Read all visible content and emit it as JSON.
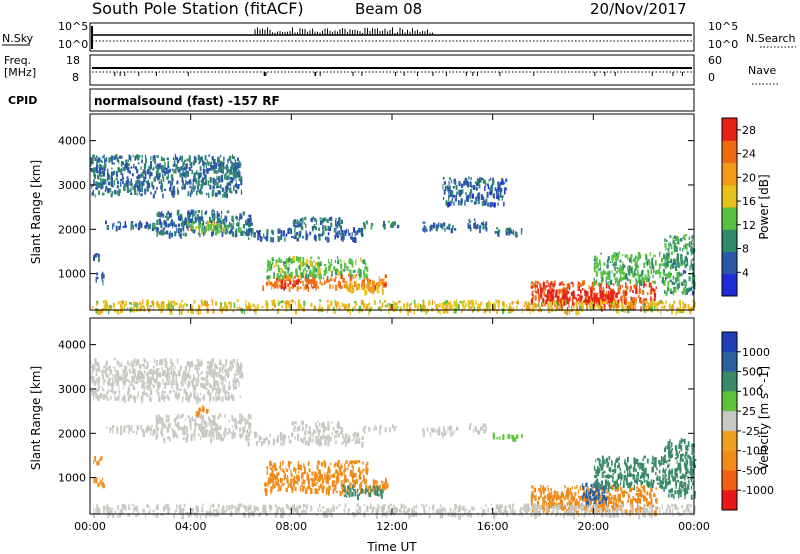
{
  "header": {
    "station_title": "South Pole Station (fitACF)",
    "beam": "Beam 08",
    "date": "20/Nov/2017"
  },
  "status_panels": {
    "nsky_label": "N.Sky",
    "nsearch_label": "N.Search",
    "nsky_ticks": [
      "10^5",
      "10^0"
    ],
    "nsearch_ticks": [
      "10^5",
      "10^0"
    ],
    "freq_label_top": "Freq.",
    "freq_label_bottom": "[MHz]",
    "freq_ticks": [
      "18",
      "8"
    ],
    "nave_label": "Nave",
    "nave_ticks": [
      "60",
      "0"
    ],
    "cpid_label": "CPID",
    "cpid_text": "normalsound (fast) -157 RF"
  },
  "colors": {
    "power_scale": [
      "#1f2bd6",
      "#2a58a6",
      "#2e8a6a",
      "#56c142",
      "#e6c21a",
      "#f29a18",
      "#f06a12",
      "#e82216"
    ],
    "velocity_scale": [
      "#1f3fb8",
      "#2a5fa0",
      "#3a8a6a",
      "#5cc43a",
      "#c9c9c4",
      "#f0a020",
      "#f08a18",
      "#f06010",
      "#e81818"
    ]
  },
  "chart_data": [
    {
      "type": "heatmap",
      "title": "Power",
      "xlabel": "Time UT",
      "ylabel": "Slant Range [km]",
      "x_ticks": [
        "00:00",
        "04:00",
        "08:00",
        "12:00",
        "16:00",
        "20:00",
        "00:00"
      ],
      "xlim_hours": [
        0,
        24
      ],
      "ylim_km": [
        180,
        4600
      ],
      "y_ticks": [
        1000,
        2000,
        3000,
        4000
      ],
      "colorbar": {
        "label": "Power [dB]",
        "ticks": [
          4,
          8,
          12,
          16,
          20,
          24,
          28
        ],
        "range": [
          0,
          30
        ]
      },
      "regions": [
        {
          "t0": 0.1,
          "t1": 0.5,
          "r0": 850,
          "r1": 1050,
          "v": 5
        },
        {
          "t0": 0.1,
          "t1": 0.45,
          "r0": 1350,
          "r1": 1500,
          "v": 6
        },
        {
          "t0": 0.5,
          "t1": 2.6,
          "r0": 2050,
          "r1": 2200,
          "v": 6
        },
        {
          "t0": 1.4,
          "t1": 2.6,
          "r0": 2100,
          "r1": 2150,
          "v": 10
        },
        {
          "t0": 2.6,
          "t1": 6.4,
          "r0": 1900,
          "r1": 2450,
          "v": 7
        },
        {
          "t0": 3.8,
          "t1": 5.3,
          "r0": 2000,
          "r1": 2200,
          "v": 16
        },
        {
          "t0": 4.4,
          "t1": 6.0,
          "r0": 1980,
          "r1": 2150,
          "v": 12
        },
        {
          "t0": 6.2,
          "t1": 10.8,
          "r0": 1800,
          "r1": 2050,
          "v": 6
        },
        {
          "t0": 8.0,
          "t1": 10.0,
          "r0": 2050,
          "r1": 2300,
          "v": 7
        },
        {
          "t0": 10.8,
          "t1": 12.2,
          "r0": 2100,
          "r1": 2200,
          "v": 9
        },
        {
          "t0": 13.2,
          "t1": 14.6,
          "r0": 2000,
          "r1": 2180,
          "v": 7
        },
        {
          "t0": 15.0,
          "t1": 15.8,
          "r0": 2050,
          "r1": 2250,
          "v": 6
        },
        {
          "t0": 16.0,
          "t1": 17.2,
          "r0": 1900,
          "r1": 2050,
          "v": 6
        },
        {
          "t0": 2.6,
          "t1": 3.2,
          "r0": 3250,
          "r1": 3500,
          "v": 6
        },
        {
          "t0": 4.6,
          "t1": 6.0,
          "r0": 3350,
          "r1": 3550,
          "v": 8
        },
        {
          "t0": 6.8,
          "t1": 11.8,
          "r0": 700,
          "r1": 1000,
          "v": 24
        },
        {
          "t0": 7.0,
          "t1": 11.0,
          "r0": 950,
          "r1": 1400,
          "v": 13
        },
        {
          "t0": 7.5,
          "t1": 9.0,
          "r0": 750,
          "r1": 900,
          "v": 27
        },
        {
          "t0": 10.0,
          "t1": 11.6,
          "r0": 600,
          "r1": 850,
          "v": 19
        },
        {
          "t0": 17.5,
          "t1": 22.5,
          "r0": 250,
          "r1": 850,
          "v": 26
        },
        {
          "t0": 18.0,
          "t1": 21.0,
          "r0": 350,
          "r1": 650,
          "v": 29
        },
        {
          "t0": 20.0,
          "t1": 23.0,
          "r0": 800,
          "r1": 1500,
          "v": 12
        },
        {
          "t0": 22.8,
          "t1": 24.0,
          "r0": 600,
          "r1": 1900,
          "v": 10
        },
        {
          "t0": 0.0,
          "t1": 24.0,
          "r0": 180,
          "r1": 420,
          "v": 17
        },
        {
          "t0": 0.0,
          "t1": 6.0,
          "r0": 2800,
          "r1": 3700,
          "v": 7
        },
        {
          "t0": 14.0,
          "t1": 16.5,
          "r0": 2600,
          "r1": 3200,
          "v": 6
        }
      ]
    },
    {
      "type": "heatmap",
      "title": "Velocity",
      "xlabel": "Time UT",
      "ylabel": "Slant Range [km]",
      "x_ticks": [
        "00:00",
        "04:00",
        "08:00",
        "12:00",
        "16:00",
        "20:00",
        "00:00"
      ],
      "xlim_hours": [
        0,
        24
      ],
      "ylim_km": [
        180,
        4600
      ],
      "y_ticks": [
        1000,
        2000,
        3000,
        4000
      ],
      "colorbar": {
        "label": "Velocity [m s^-1]",
        "ticks": [
          "1000",
          "500",
          "100",
          "25",
          "-25",
          "-100",
          "-500",
          "-1000"
        ]
      },
      "regions": [
        {
          "t0": 0.1,
          "t1": 0.5,
          "r0": 850,
          "r1": 1050,
          "v": -300
        },
        {
          "t0": 0.1,
          "t1": 0.45,
          "r0": 1350,
          "r1": 1500,
          "v": -200
        },
        {
          "t0": 0.5,
          "t1": 2.6,
          "r0": 2050,
          "r1": 2200,
          "v": 0
        },
        {
          "t0": 2.6,
          "t1": 6.4,
          "r0": 1900,
          "r1": 2450,
          "v": 0
        },
        {
          "t0": 4.2,
          "t1": 4.8,
          "r0": 2450,
          "r1": 2650,
          "v": -150
        },
        {
          "t0": 4.4,
          "t1": 6.0,
          "r0": 1980,
          "r1": 2150,
          "v": -10
        },
        {
          "t0": 6.2,
          "t1": 10.8,
          "r0": 1800,
          "r1": 2050,
          "v": 10
        },
        {
          "t0": 8.0,
          "t1": 10.0,
          "r0": 2050,
          "r1": 2300,
          "v": 0
        },
        {
          "t0": 10.8,
          "t1": 12.2,
          "r0": 2100,
          "r1": 2200,
          "v": 0
        },
        {
          "t0": 13.2,
          "t1": 14.6,
          "r0": 2000,
          "r1": 2180,
          "v": 0
        },
        {
          "t0": 15.0,
          "t1": 15.8,
          "r0": 2050,
          "r1": 2250,
          "v": 0
        },
        {
          "t0": 16.0,
          "t1": 17.2,
          "r0": 1900,
          "r1": 2050,
          "v": 60
        },
        {
          "t0": 2.6,
          "t1": 3.2,
          "r0": 3250,
          "r1": 3500,
          "v": 0
        },
        {
          "t0": 4.6,
          "t1": 6.0,
          "r0": 3350,
          "r1": 3550,
          "v": 0
        },
        {
          "t0": 6.8,
          "t1": 11.8,
          "r0": 700,
          "r1": 1000,
          "v": -200
        },
        {
          "t0": 7.0,
          "t1": 11.0,
          "r0": 950,
          "r1": 1400,
          "v": -150
        },
        {
          "t0": 10.0,
          "t1": 11.6,
          "r0": 600,
          "r1": 850,
          "v": 200
        },
        {
          "t0": 17.5,
          "t1": 22.5,
          "r0": 250,
          "r1": 850,
          "v": -250
        },
        {
          "t0": 18.0,
          "t1": 21.0,
          "r0": 350,
          "r1": 650,
          "v": -150
        },
        {
          "t0": 19.5,
          "t1": 20.5,
          "r0": 400,
          "r1": 900,
          "v": 700
        },
        {
          "t0": 20.0,
          "t1": 23.0,
          "r0": 800,
          "r1": 1500,
          "v": 150
        },
        {
          "t0": 22.8,
          "t1": 24.0,
          "r0": 600,
          "r1": 1900,
          "v": 300
        },
        {
          "t0": 0.0,
          "t1": 24.0,
          "r0": 180,
          "r1": 420,
          "v": 0
        },
        {
          "t0": 0.0,
          "t1": 6.0,
          "r0": 2800,
          "r1": 3700,
          "v": 0
        }
      ]
    }
  ]
}
